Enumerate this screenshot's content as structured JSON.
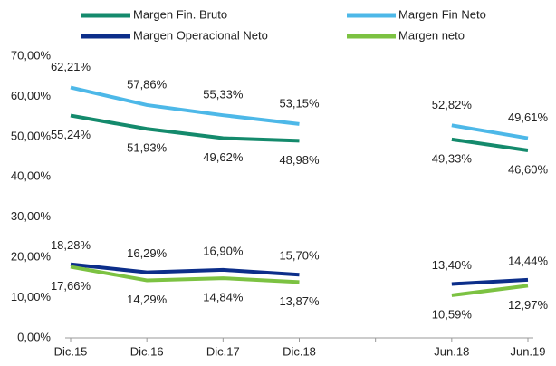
{
  "chart_data": {
    "type": "line",
    "categories": [
      "Dic.15",
      "Dic.16",
      "Dic.17",
      "Dic.18",
      null,
      "Jun.18",
      "Jun.19"
    ],
    "series": [
      {
        "name": "Margen Fin. Bruto",
        "color": "#148a6c",
        "values": [
          55.24,
          51.93,
          49.62,
          48.98,
          null,
          49.33,
          46.6
        ],
        "value_labels": [
          "55,24%",
          "51,93%",
          "49,62%",
          "48,98%",
          null,
          "49,33%",
          "46,60%"
        ]
      },
      {
        "name": "Margen Fin Neto",
        "color": "#4db8e8",
        "values": [
          62.21,
          57.86,
          55.33,
          53.15,
          null,
          52.82,
          49.61
        ],
        "value_labels": [
          "62,21%",
          "57,86%",
          "55,33%",
          "53,15%",
          null,
          "52,82%",
          "49,61%"
        ]
      },
      {
        "name": "Margen Operacional Neto",
        "color": "#0c2e8a",
        "values": [
          18.28,
          16.29,
          16.9,
          15.7,
          null,
          13.4,
          14.44
        ],
        "value_labels": [
          "18,28%",
          "16,29%",
          "16,90%",
          "15,70%",
          null,
          "13,40%",
          "14,44%"
        ]
      },
      {
        "name": "Margen neto",
        "color": "#7cc242",
        "values": [
          17.66,
          14.29,
          14.84,
          13.87,
          null,
          10.59,
          12.97
        ],
        "value_labels": [
          "17,66%",
          "14,29%",
          "14,84%",
          "13,87%",
          null,
          "10,59%",
          "12,97%"
        ]
      }
    ],
    "ylim": [
      0,
      70
    ],
    "yticks": [
      {
        "value": 0,
        "label": "0,00%"
      },
      {
        "value": 10,
        "label": "10,00%"
      },
      {
        "value": 20,
        "label": "20,00%"
      },
      {
        "value": 30,
        "label": "30,00%"
      },
      {
        "value": 40,
        "label": "40,00%"
      },
      {
        "value": 50,
        "label": "50,00%"
      },
      {
        "value": 60,
        "label": "60,00%"
      },
      {
        "value": 70,
        "label": "70,00%"
      }
    ],
    "grid": false,
    "legend": "top"
  }
}
